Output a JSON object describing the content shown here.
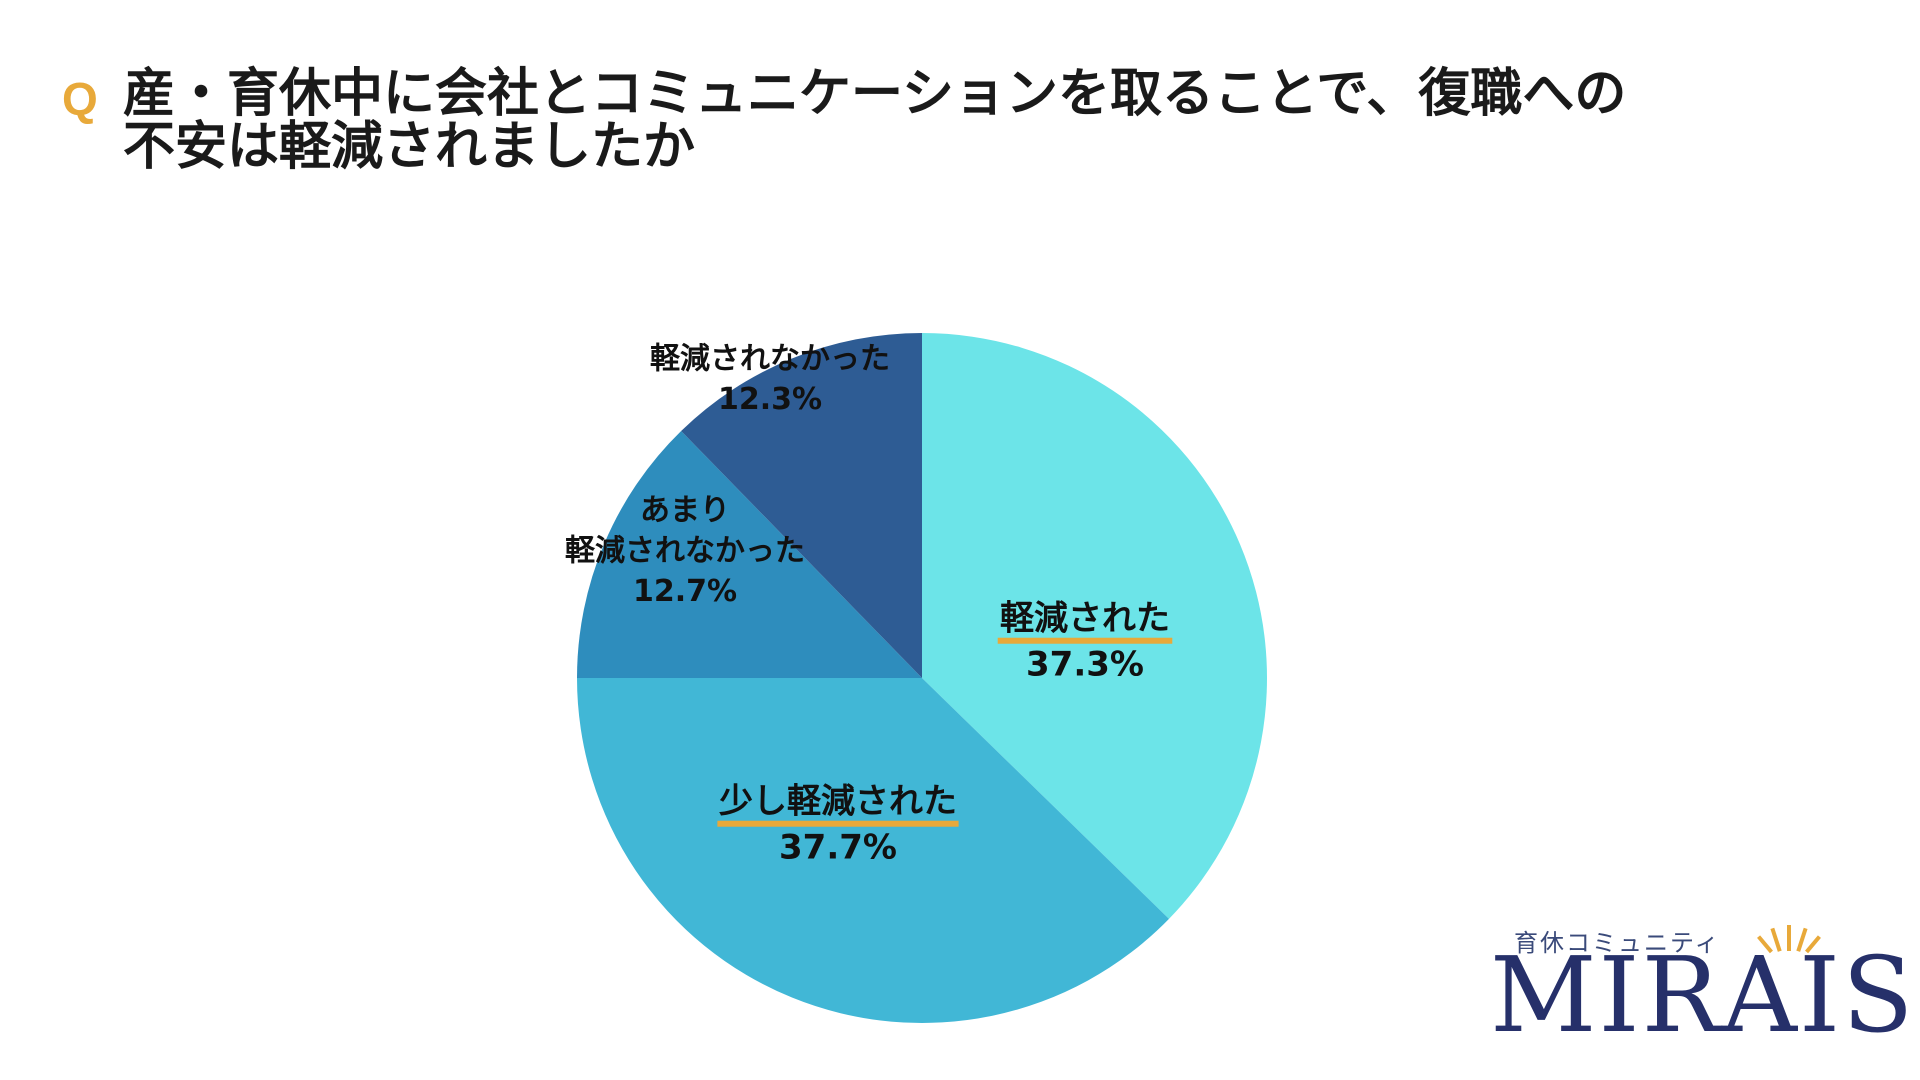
{
  "question": {
    "prefix": "Q",
    "line1": "産・育休中に会社とコミュニケーションを取ることで、復職への",
    "line2": "不安は軽減されましたか"
  },
  "chart_data": {
    "type": "pie",
    "start_angle": "12 o'clock",
    "direction": "clockwise",
    "slices": [
      {
        "label": "軽減された",
        "value": 37.3,
        "value_label": "37.3%",
        "color": "#6CE4E8",
        "highlighted": true
      },
      {
        "label": "少し軽減された",
        "value": 37.7,
        "value_label": "37.7%",
        "color": "#41B7D6",
        "highlighted": true
      },
      {
        "label": "あまり\n軽減されなかった",
        "value": 12.7,
        "value_label": "12.7%",
        "color": "#2E8DBD",
        "highlighted": false
      },
      {
        "label": "軽減されなかった",
        "value": 12.3,
        "value_label": "12.3%",
        "color": "#2E5C94",
        "highlighted": false
      }
    ],
    "highlight_color": "#E8A93A"
  },
  "logo": {
    "subtitle": "育休コミュニティ",
    "name": "MIRAIS"
  }
}
